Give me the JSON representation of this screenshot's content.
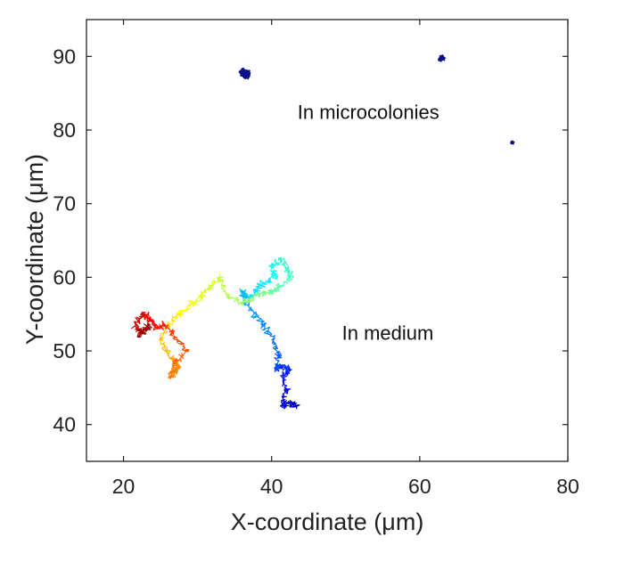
{
  "chart_data": {
    "type": "scatter",
    "xlabel": "X-coordinate (μm)",
    "ylabel": "Y-coordinate (μm)",
    "xlim": [
      15,
      80
    ],
    "ylim": [
      35,
      95
    ],
    "xticks": [
      20,
      40,
      60,
      80
    ],
    "yticks": [
      40,
      50,
      60,
      70,
      80,
      90
    ],
    "grid": false,
    "annotations": [
      {
        "text": "In microcolonies",
        "x": 43.5,
        "y": 82.5
      },
      {
        "text": "In medium",
        "x": 49.5,
        "y": 52.5
      }
    ],
    "colormap": "jet",
    "microcolony_clusters": [
      {
        "x": 36.5,
        "y": 87.6,
        "spread": 1.0,
        "color": "#0a0f8c"
      },
      {
        "x": 63.0,
        "y": 89.8,
        "spread": 0.6,
        "color": "#0a0f8c"
      },
      {
        "x": 72.5,
        "y": 78.3,
        "spread": 0.35,
        "color": "#0a0f8c"
      }
    ],
    "medium_trajectory_waypoints": [
      [
        43.5,
        42.5
      ],
      [
        42.5,
        43.0
      ],
      [
        41.5,
        42.5
      ],
      [
        42.0,
        44.5
      ],
      [
        41.5,
        46.5
      ],
      [
        42.5,
        47.5
      ],
      [
        41.0,
        48.0
      ],
      [
        40.5,
        47.5
      ],
      [
        41.0,
        49.5
      ],
      [
        40.0,
        52.0
      ],
      [
        38.5,
        54.0
      ],
      [
        36.5,
        56.5
      ],
      [
        36.0,
        58.0
      ],
      [
        37.0,
        57.0
      ],
      [
        38.5,
        59.0
      ],
      [
        40.5,
        60.0
      ],
      [
        40.0,
        61.5
      ],
      [
        41.5,
        62.5
      ],
      [
        42.5,
        60.0
      ],
      [
        41.0,
        58.5
      ],
      [
        39.5,
        58.0
      ],
      [
        38.0,
        57.5
      ],
      [
        36.0,
        56.5
      ],
      [
        34.0,
        57.5
      ],
      [
        33.0,
        60.0
      ],
      [
        31.0,
        58.0
      ],
      [
        29.5,
        56.5
      ],
      [
        27.5,
        55.0
      ],
      [
        26.0,
        53.5
      ],
      [
        25.0,
        51.5
      ],
      [
        26.5,
        49.0
      ],
      [
        27.5,
        48.0
      ],
      [
        26.5,
        46.5
      ],
      [
        27.0,
        48.5
      ],
      [
        28.5,
        50.0
      ],
      [
        27.0,
        52.0
      ],
      [
        25.5,
        53.5
      ],
      [
        24.5,
        53.0
      ],
      [
        23.5,
        54.5
      ],
      [
        22.5,
        55.0
      ],
      [
        21.5,
        53.5
      ],
      [
        22.5,
        52.5
      ],
      [
        23.5,
        53.5
      ],
      [
        22.0,
        52.0
      ]
    ]
  }
}
